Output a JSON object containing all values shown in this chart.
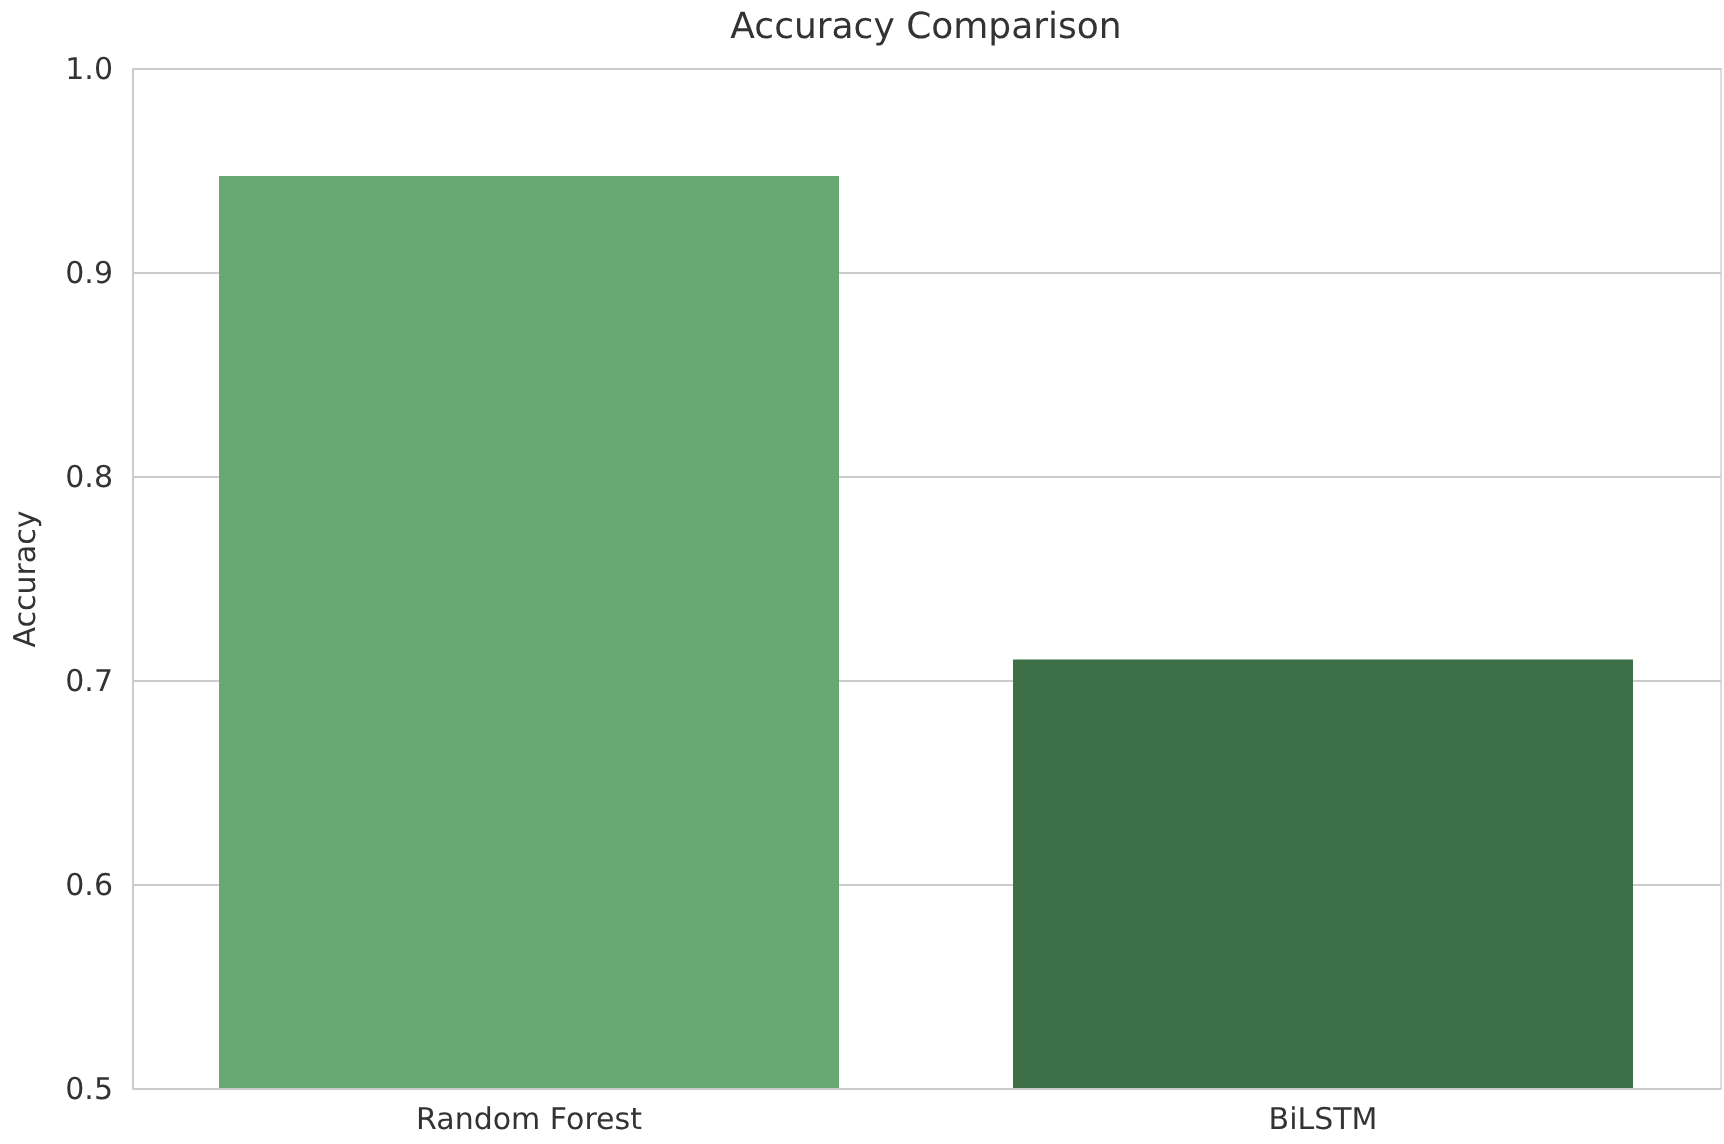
{
  "chart_data": {
    "type": "bar",
    "title": "Accuracy Comparison",
    "ylabel": "Accuracy",
    "categories": [
      "Random Forest",
      "BiLSTM"
    ],
    "values": [
      0.947,
      0.71
    ],
    "colors": [
      "#67a873",
      "#3e7048"
    ],
    "ylim": [
      0.5,
      1.0
    ],
    "yticks": [
      0.5,
      0.6,
      0.7,
      0.8,
      0.9,
      {
        "value": 1.0,
        "label": "1.0"
      }
    ],
    "grid": "y"
  }
}
